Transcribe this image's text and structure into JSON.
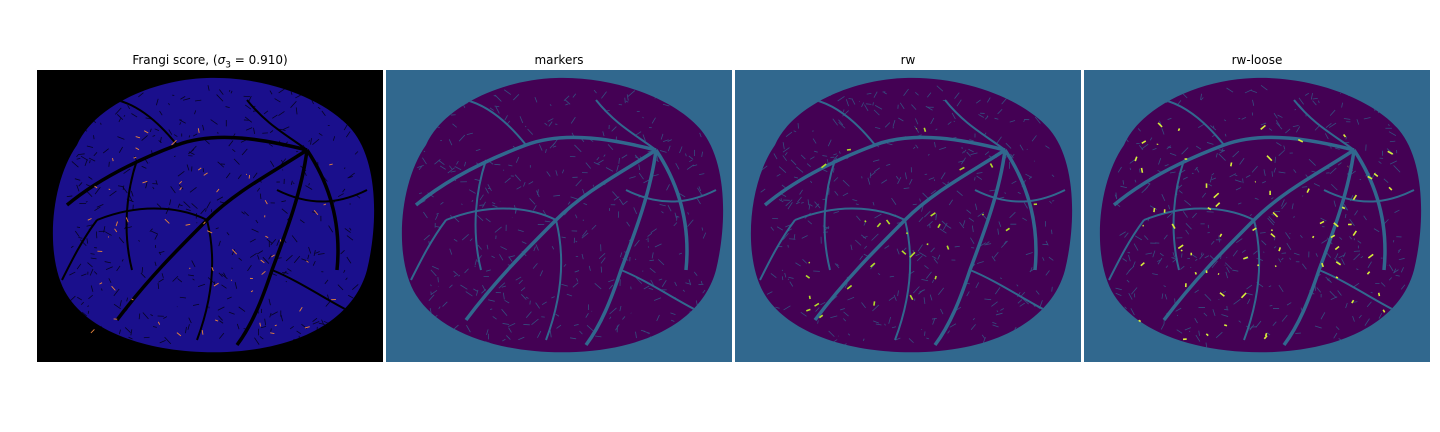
{
  "figure": {
    "panels": [
      {
        "title_prefix": "Frangi score, (",
        "title_sigma": "σ",
        "title_sub": "3",
        "title_suffix": " = 0.910)",
        "background_color": "#000000",
        "region_color": "#1a0f8c",
        "vessel_color": "#000000",
        "highlight_color": "#e8843b"
      },
      {
        "title": "markers",
        "background_color": "#31688e",
        "region_color": "#440154",
        "vessel_color": "#31688e",
        "highlight_color": "#31688e"
      },
      {
        "title": "rw",
        "background_color": "#31688e",
        "region_color": "#440154",
        "vessel_color": "#31688e",
        "highlight_color": "#b5de2b"
      },
      {
        "title": "rw-loose",
        "background_color": "#31688e",
        "region_color": "#440154",
        "vessel_color": "#31688e",
        "highlight_color": "#d9ef3a"
      }
    ]
  }
}
